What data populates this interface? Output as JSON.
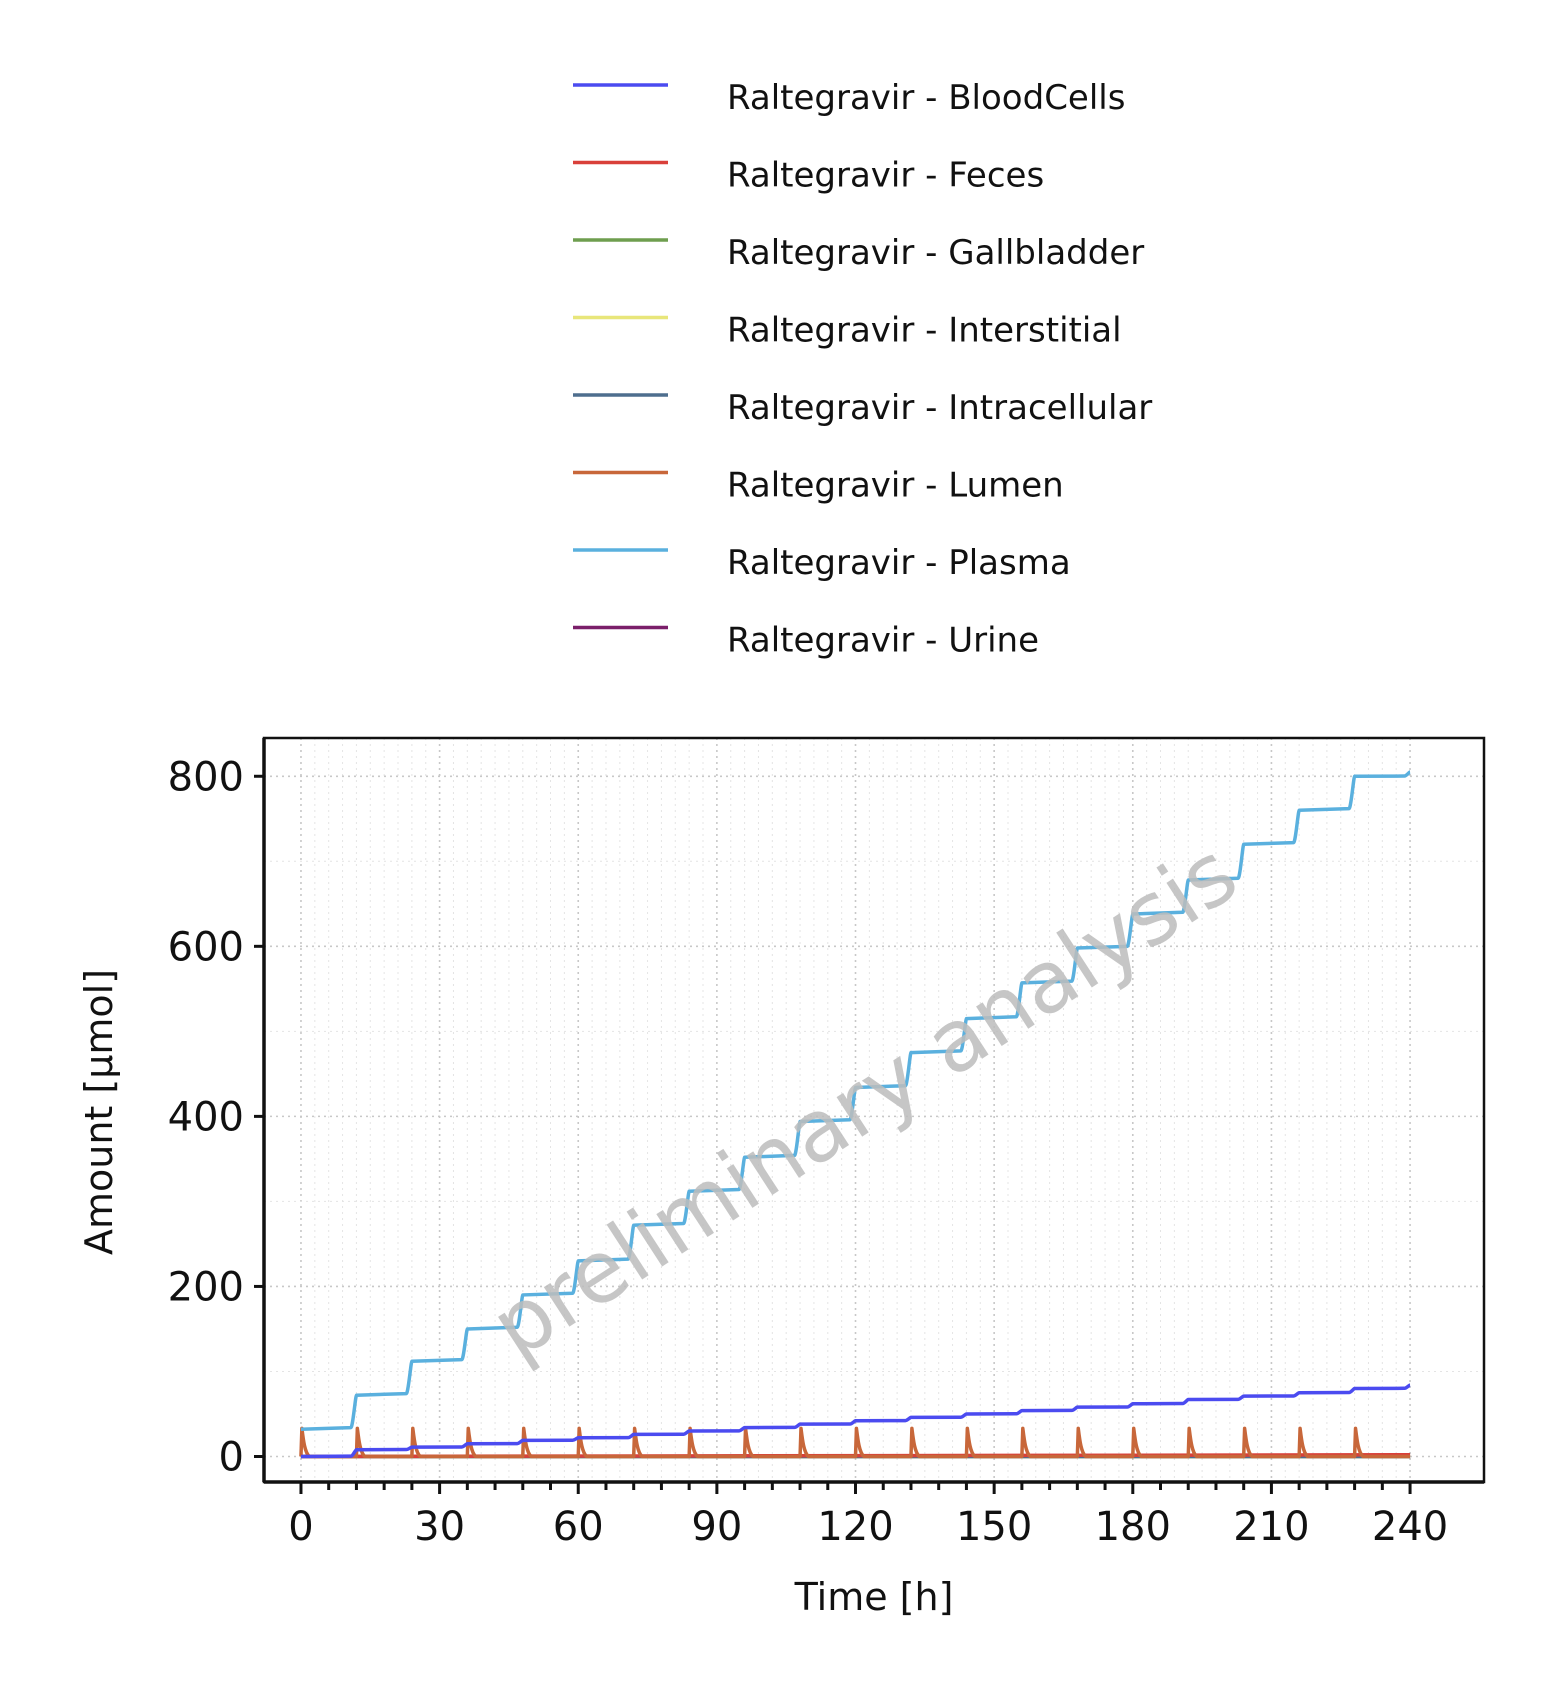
{
  "chart_data": {
    "type": "line",
    "xlabel": "Time [h]",
    "ylabel": "Amount [µmol]",
    "xlim": [
      -8,
      256
    ],
    "ylim": [
      -30,
      845
    ],
    "x_ticks": [
      0,
      30,
      60,
      90,
      120,
      150,
      180,
      210,
      240
    ],
    "x_tick_labels": [
      "0",
      "30",
      "60",
      "90",
      "120",
      "150",
      "180",
      "210",
      "240"
    ],
    "y_ticks": [
      0,
      200,
      400,
      600,
      800
    ],
    "y_tick_labels": [
      "0",
      "200",
      "400",
      "600",
      "800"
    ],
    "grid": true,
    "legend_position": "top",
    "watermark": "preliminary analysis",
    "series": [
      {
        "name": "Raltegravir - BloodCells",
        "color": "#4B4BF0",
        "x": [
          0,
          12,
          24,
          36,
          48,
          60,
          72,
          84,
          96,
          108,
          120,
          132,
          144,
          156,
          168,
          180,
          192,
          204,
          216,
          228,
          240
        ],
        "y": [
          0,
          8,
          11,
          15,
          19,
          22,
          26,
          30,
          34,
          38,
          42,
          46,
          50,
          54,
          58,
          62,
          67,
          71,
          75,
          80,
          84
        ]
      },
      {
        "name": "Raltegravir - Feces",
        "color": "#D9403A",
        "x": [
          0,
          240
        ],
        "y": [
          0,
          2
        ]
      },
      {
        "name": "Raltegravir - Gallbladder",
        "color": "#6E9E4F",
        "x": [
          0,
          240
        ],
        "y": [
          0,
          0
        ]
      },
      {
        "name": "Raltegravir - Interstitial",
        "color": "#E8E67A",
        "x": [
          0,
          240
        ],
        "y": [
          0,
          0
        ]
      },
      {
        "name": "Raltegravir - Intracellular",
        "color": "#4E6E8E",
        "x": [
          0,
          240
        ],
        "y": [
          0,
          0
        ]
      },
      {
        "name": "Raltegravir - Lumen",
        "color": "#C8673A",
        "dose_times": [
          0,
          12,
          24,
          36,
          48,
          60,
          72,
          84,
          96,
          108,
          120,
          132,
          144,
          156,
          168,
          180,
          192,
          204,
          216,
          228
        ],
        "peak": 33,
        "baseline": 0
      },
      {
        "name": "Raltegravir - Plasma",
        "color": "#5AB0DE",
        "x": [
          0,
          12,
          24,
          36,
          48,
          60,
          72,
          84,
          96,
          108,
          120,
          132,
          144,
          156,
          168,
          180,
          192,
          204,
          216,
          228,
          240
        ],
        "y": [
          32,
          72,
          112,
          150,
          190,
          230,
          272,
          312,
          352,
          394,
          434,
          475,
          515,
          557,
          598,
          638,
          678,
          720,
          760,
          800,
          805
        ]
      },
      {
        "name": "Raltegravir - Urine",
        "color": "#7B1F6A",
        "x": [
          0,
          240
        ],
        "y": [
          0,
          0
        ]
      }
    ]
  }
}
